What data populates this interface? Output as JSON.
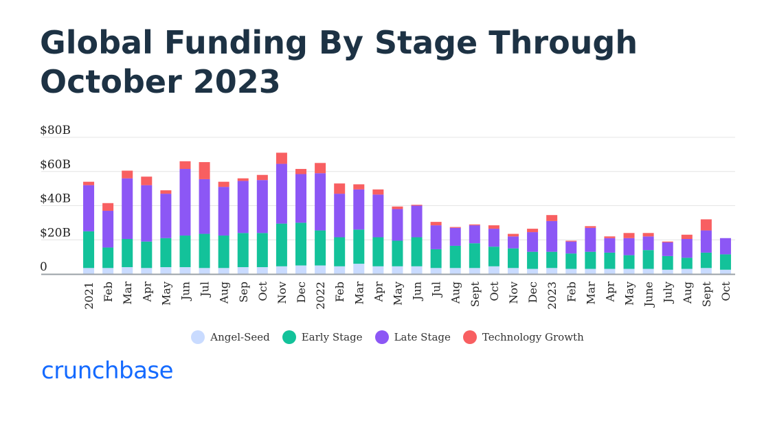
{
  "title": {
    "line1": "Global Funding By Stage Through",
    "line2": "October 2023"
  },
  "brand": "crunchbase",
  "colors": {
    "angel_seed": "#c9dbff",
    "early": "#13c29a",
    "late": "#8c57f5",
    "growth": "#f85f61"
  },
  "chart_data": {
    "type": "bar",
    "stacked": true,
    "title": "Global Funding By Stage Through October 2023",
    "xlabel": "",
    "ylabel": "",
    "ylim": [
      0,
      80
    ],
    "yticks": [
      {
        "value": 0,
        "label": "0"
      },
      {
        "value": 20,
        "label": "$20B"
      },
      {
        "value": 40,
        "label": "$40B"
      },
      {
        "value": 60,
        "label": "$60B"
      },
      {
        "value": 80,
        "label": "$80B"
      }
    ],
    "categories": [
      "2021",
      "Feb",
      "Mar",
      "Apr",
      "May",
      "Jun",
      "Jul",
      "Aug",
      "Sep",
      "Oct",
      "Nov",
      "Dec",
      "2022",
      "Feb",
      "Mar",
      "Apr",
      "May",
      "Jun",
      "Jul",
      "Aug",
      "Sept",
      "Oct",
      "Nov",
      "Dec",
      "2023",
      "Feb",
      "Mar",
      "Apr",
      "May",
      "June",
      "July",
      "Aug",
      "Sept",
      "Oct"
    ],
    "series": [
      {
        "name": "Angel-Seed",
        "values": [
          3.5,
          3.5,
          4,
          3.5,
          4,
          4,
          3.5,
          3.5,
          4,
          4,
          4.5,
          5,
          5,
          4.5,
          6,
          4.5,
          4.5,
          4.5,
          3.5,
          3.5,
          3.5,
          4.5,
          3.5,
          3,
          3.5,
          3,
          3,
          3,
          3,
          3,
          2.5,
          3,
          3.5,
          2.5
        ]
      },
      {
        "name": "Early Stage",
        "values": [
          21.5,
          12,
          16.5,
          15.5,
          17,
          18.5,
          20,
          19,
          20,
          20,
          25,
          25,
          20.5,
          17,
          20,
          17,
          15,
          17,
          11,
          13,
          14.5,
          11.5,
          11.5,
          10,
          9.5,
          9,
          10,
          9.5,
          8,
          11,
          8,
          6.5,
          9,
          9
        ]
      },
      {
        "name": "Late Stage",
        "values": [
          27,
          21.5,
          35.5,
          33,
          26,
          39,
          32,
          28.5,
          30.5,
          31,
          35,
          28.5,
          33.5,
          25.5,
          23.5,
          25,
          18.5,
          18.5,
          14,
          10.5,
          10.5,
          10.5,
          7,
          11.5,
          18,
          7,
          14,
          8.5,
          10,
          8,
          8,
          11,
          13,
          9.5
        ]
      },
      {
        "name": "Technology Growth",
        "values": [
          2,
          4.5,
          4.5,
          5,
          2,
          4.5,
          10,
          3,
          1.5,
          3,
          6.5,
          3,
          6,
          6,
          3,
          3,
          1.5,
          0.5,
          2,
          0.5,
          0.5,
          2,
          1.5,
          2,
          3.5,
          0.5,
          1,
          1,
          3,
          2,
          0.5,
          2.5,
          6.5,
          0
        ]
      }
    ],
    "legend_position": "bottom-center",
    "grid": true
  }
}
